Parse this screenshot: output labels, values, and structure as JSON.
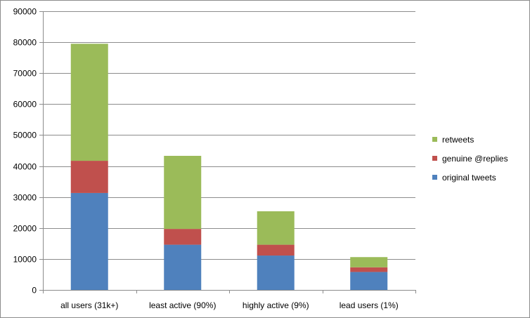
{
  "chart_data": {
    "type": "bar",
    "stacked": true,
    "title": "",
    "xlabel": "",
    "ylabel": "",
    "categories": [
      "all users (31k+)",
      "least active (90%)",
      "highly active (9%)",
      "lead users (1%)"
    ],
    "series": [
      {
        "name": "original tweets",
        "color": "#4F81BD",
        "values": [
          31300,
          14600,
          11100,
          5800
        ]
      },
      {
        "name": "genuine @replies",
        "color": "#C0504D",
        "values": [
          10400,
          5100,
          3500,
          1500
        ]
      },
      {
        "name": "retweets",
        "color": "#9BBB59",
        "values": [
          37800,
          23600,
          10800,
          3300
        ]
      }
    ],
    "ylim": [
      0,
      90000
    ],
    "yticks": [
      0,
      10000,
      20000,
      30000,
      40000,
      50000,
      60000,
      70000,
      80000,
      90000
    ],
    "grid": true,
    "legend": "right"
  }
}
